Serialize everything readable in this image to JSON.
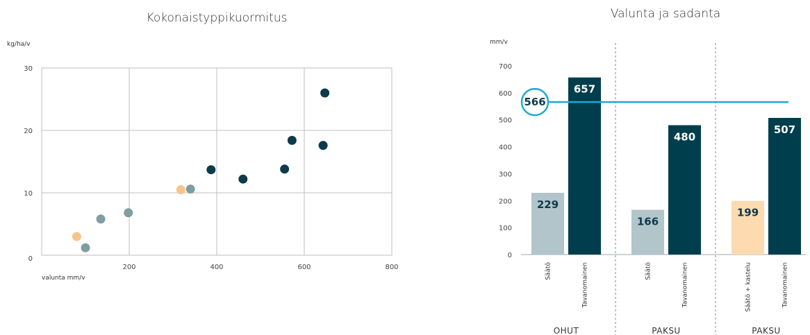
{
  "chart_data": [
    {
      "type": "scatter",
      "title": "Kokonaistyppikuormitus",
      "ylabel": "kg/ha/v",
      "xlabel": "valunta mm/v",
      "xlim": [
        0,
        800
      ],
      "ylim": [
        0,
        30
      ],
      "x_ticks": [
        "200",
        "400",
        "600",
        "800"
      ],
      "y_ticks": [
        "0",
        "10",
        "20",
        "30"
      ],
      "grid": true,
      "colors": {
        "dark": "#0d3b4c",
        "grey": "#7f9da3",
        "orange": "#f8c48d"
      },
      "points": [
        {
          "x": 80,
          "y": 3.0,
          "group": "orange"
        },
        {
          "x": 100,
          "y": 1.2,
          "group": "grey"
        },
        {
          "x": 135,
          "y": 5.8,
          "group": "grey"
        },
        {
          "x": 198,
          "y": 6.8,
          "group": "grey"
        },
        {
          "x": 318,
          "y": 10.5,
          "group": "orange"
        },
        {
          "x": 340,
          "y": 10.6,
          "group": "grey"
        },
        {
          "x": 387,
          "y": 13.7,
          "group": "dark"
        },
        {
          "x": 460,
          "y": 12.2,
          "group": "dark"
        },
        {
          "x": 555,
          "y": 13.8,
          "group": "dark"
        },
        {
          "x": 572,
          "y": 18.4,
          "group": "dark"
        },
        {
          "x": 643,
          "y": 17.6,
          "group": "dark"
        },
        {
          "x": 647,
          "y": 26.0,
          "group": "dark"
        }
      ]
    },
    {
      "type": "bar",
      "title": "Valunta ja sadanta",
      "ylabel": "mm/v",
      "ylim": [
        0,
        700
      ],
      "y_ticks": [
        "0",
        "100",
        "200",
        "300",
        "400",
        "500",
        "600",
        "700"
      ],
      "grid": false,
      "reference_line": {
        "value": 566,
        "label": "566",
        "color": "#1ea9cf"
      },
      "groups": [
        {
          "label": "OHUT",
          "bars": [
            {
              "category": "Säätö",
              "value": 229,
              "label": "229",
              "color": "#b2c5ca",
              "text_color": "#0d3b4c"
            },
            {
              "category": "Tavanomainen",
              "value": 657,
              "label": "657",
              "color": "#003e4d",
              "text_color": "#ffffff"
            }
          ]
        },
        {
          "label": "PAKSU",
          "bars": [
            {
              "category": "Säätö",
              "value": 166,
              "label": "166",
              "color": "#b2c5ca",
              "text_color": "#0d3b4c"
            },
            {
              "category": "Tavanomainen",
              "value": 480,
              "label": "480",
              "color": "#003e4d",
              "text_color": "#ffffff"
            }
          ]
        },
        {
          "label": "PAKSU",
          "bars": [
            {
              "category": "Säätö + kastelu",
              "value": 199,
              "label": "199",
              "color": "#fddab0",
              "text_color": "#0d3b4c"
            },
            {
              "category": "Tavanomainen",
              "value": 507,
              "label": "507",
              "color": "#003e4d",
              "text_color": "#ffffff"
            }
          ]
        }
      ]
    }
  ]
}
